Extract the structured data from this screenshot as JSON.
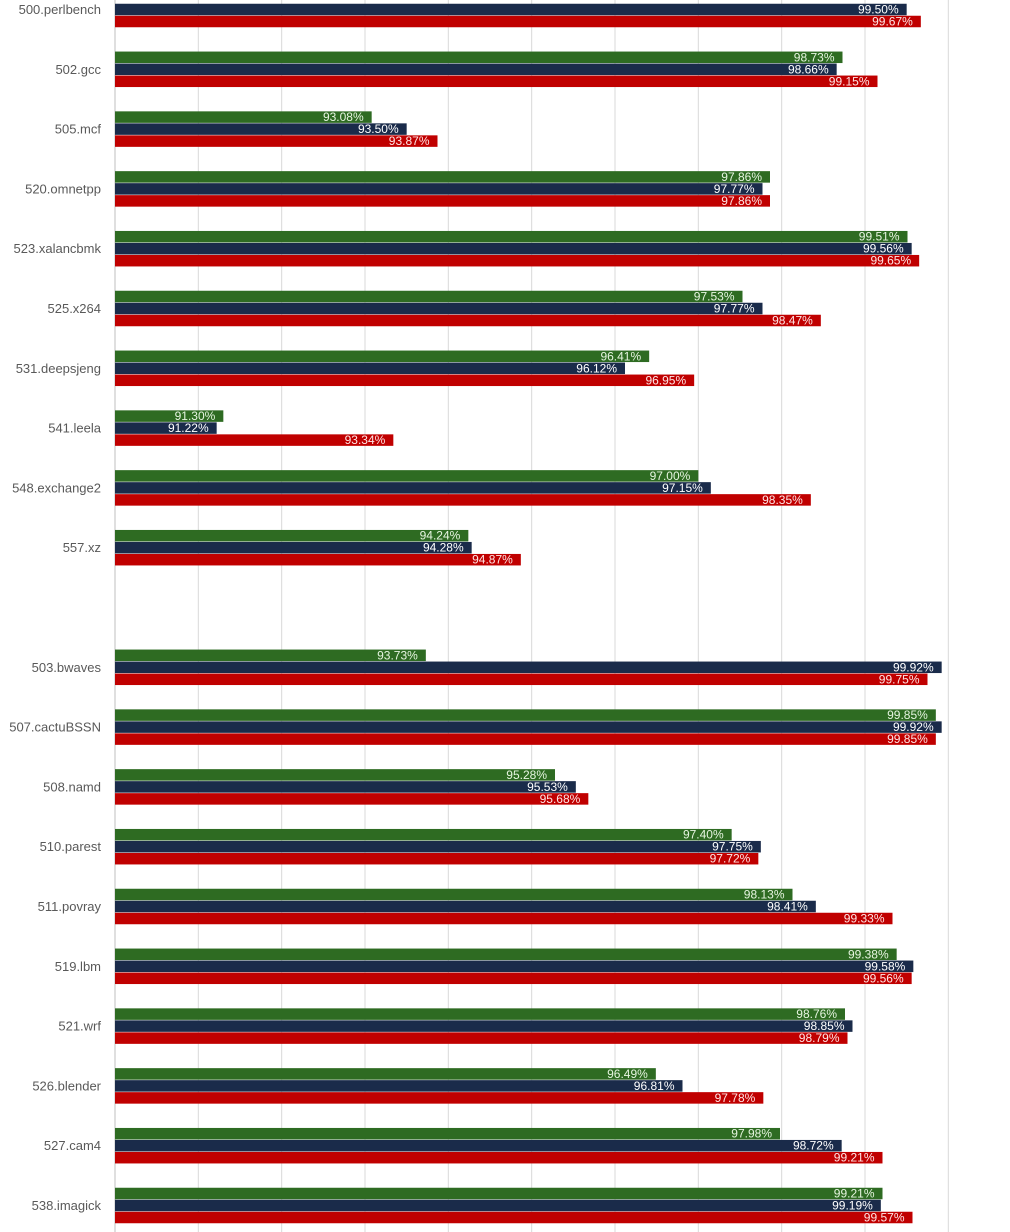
{
  "chart_data": {
    "type": "bar",
    "orientation": "horizontal",
    "title": "",
    "xlabel": "",
    "ylabel": "",
    "xlim": [
      90.0,
      100.5
    ],
    "grid": true,
    "legend": "none",
    "categories": [
      "500.perlbench",
      "502.gcc",
      "505.mcf",
      "520.omnetpp",
      "523.xalancbmk",
      "525.x264",
      "531.deepsjeng",
      "541.leela",
      "548.exchange2",
      "557.xz",
      "",
      "503.bwaves",
      "507.cactuBSSN",
      "508.namd",
      "510.parest",
      "511.povray",
      "519.lbm",
      "521.wrf",
      "526.blender",
      "527.cam4",
      "538.imagick"
    ],
    "series": [
      {
        "name": "Series 1",
        "color": "#2e6b22",
        "label_color": "#e6f5e0",
        "values": [
          null,
          98.73,
          93.08,
          97.86,
          99.51,
          97.53,
          96.41,
          91.3,
          97.0,
          94.24,
          null,
          93.73,
          99.85,
          95.28,
          97.4,
          98.13,
          99.38,
          98.76,
          96.49,
          97.98,
          99.21
        ],
        "labels": [
          "",
          "98.73%",
          "93.08%",
          "97.86%",
          "99.51%",
          "97.53%",
          "96.41%",
          "91.30%",
          "97.00%",
          "94.24%",
          "",
          "93.73%",
          "99.85%",
          "95.28%",
          "97.40%",
          "98.13%",
          "99.38%",
          "98.76%",
          "96.49%",
          "97.98%",
          "99.21%"
        ]
      },
      {
        "name": "Series 2",
        "color": "#1a2b4a",
        "label_color": "#ffffff",
        "values": [
          99.5,
          98.66,
          93.5,
          97.77,
          99.56,
          97.77,
          96.12,
          91.22,
          97.15,
          94.28,
          null,
          99.92,
          99.92,
          95.53,
          97.75,
          98.41,
          99.58,
          98.85,
          96.81,
          98.72,
          99.19
        ],
        "labels": [
          "99.50%",
          "98.66%",
          "93.50%",
          "97.77%",
          "99.56%",
          "97.77%",
          "96.12%",
          "91.22%",
          "97.15%",
          "94.28%",
          "",
          "99.92%",
          "99.92%",
          "95.53%",
          "97.75%",
          "98.41%",
          "99.58%",
          "98.85%",
          "96.81%",
          "98.72%",
          "99.19%"
        ]
      },
      {
        "name": "Series 3",
        "color": "#c00000",
        "label_color": "#ffe5e5",
        "values": [
          99.67,
          99.15,
          93.87,
          97.86,
          99.65,
          98.47,
          96.95,
          93.34,
          98.35,
          94.87,
          null,
          99.75,
          99.85,
          95.68,
          97.72,
          99.33,
          99.56,
          98.79,
          97.78,
          99.21,
          99.57
        ],
        "labels": [
          "99.67%",
          "99.15%",
          "93.87%",
          "97.86%",
          "99.65%",
          "98.47%",
          "96.95%",
          "93.34%",
          "98.35%",
          "94.87%",
          "",
          "99.75%",
          "99.85%",
          "95.68%",
          "97.72%",
          "99.33%",
          "99.56%",
          "98.79%",
          "97.78%",
          "99.21%",
          "99.57%"
        ]
      }
    ]
  }
}
